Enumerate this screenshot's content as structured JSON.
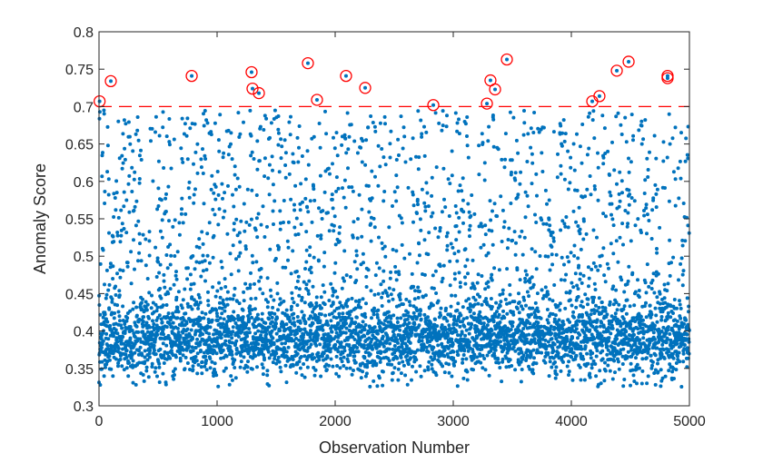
{
  "chart_data": {
    "type": "scatter",
    "title": "",
    "xlabel": "Observation Number",
    "ylabel": "Anomaly Score",
    "xlim": [
      0,
      5000
    ],
    "ylim": [
      0.3,
      0.8
    ],
    "xticks": [
      0,
      1000,
      2000,
      3000,
      4000,
      5000
    ],
    "xtick_labels": [
      "0",
      "1000",
      "2000",
      "3000",
      "4000",
      "5000"
    ],
    "yticks": [
      0.3,
      0.35,
      0.4,
      0.45,
      0.5,
      0.55,
      0.6,
      0.65,
      0.7,
      0.75,
      0.8
    ],
    "ytick_labels": [
      "0.3",
      "0.35",
      "0.4",
      "0.45",
      "0.5",
      "0.55",
      "0.6",
      "0.65",
      "0.7",
      "0.75",
      "0.8"
    ],
    "grid": false,
    "n_points": 5000,
    "threshold": 0.7,
    "colors": {
      "points": "#0072BD",
      "anomaly_marker": "#FF0000",
      "threshold_line": "#FF0000"
    },
    "anomalies": [
      {
        "x": 5,
        "y": 0.707
      },
      {
        "x": 100,
        "y": 0.734
      },
      {
        "x": 785,
        "y": 0.741
      },
      {
        "x": 1292,
        "y": 0.746
      },
      {
        "x": 1300,
        "y": 0.724
      },
      {
        "x": 1354,
        "y": 0.718
      },
      {
        "x": 1769,
        "y": 0.758
      },
      {
        "x": 1846,
        "y": 0.709
      },
      {
        "x": 2092,
        "y": 0.741
      },
      {
        "x": 2254,
        "y": 0.725
      },
      {
        "x": 2831,
        "y": 0.702
      },
      {
        "x": 3285,
        "y": 0.704
      },
      {
        "x": 3315,
        "y": 0.735
      },
      {
        "x": 3354,
        "y": 0.723
      },
      {
        "x": 3454,
        "y": 0.763
      },
      {
        "x": 4177,
        "y": 0.707
      },
      {
        "x": 4238,
        "y": 0.714
      },
      {
        "x": 4385,
        "y": 0.748
      },
      {
        "x": 4485,
        "y": 0.76
      },
      {
        "x": 4815,
        "y": 0.741
      },
      {
        "x": 4815,
        "y": 0.738
      }
    ]
  }
}
